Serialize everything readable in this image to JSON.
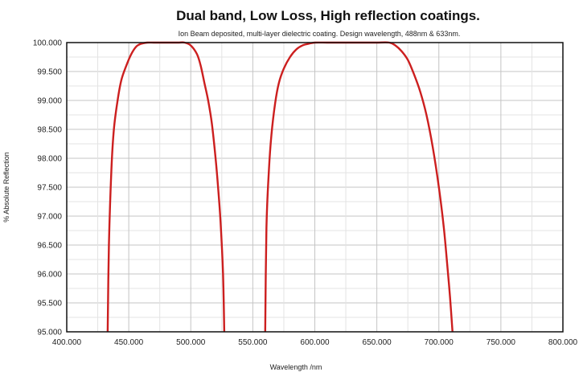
{
  "chart_data": {
    "type": "line",
    "title": "Dual band, Low Loss, High reflection coatings.",
    "subtitle": "Ion Beam deposited, multi-layer dielectric coating. Design wavelength, 488nm & 633nm.",
    "xlabel": "Wavelength /nm",
    "ylabel": "% Absolute Reflection",
    "xlim": [
      400,
      800
    ],
    "ylim": [
      95,
      100
    ],
    "x_ticks": [
      400,
      450,
      500,
      550,
      600,
      650,
      700,
      750,
      800
    ],
    "x_tick_labels": [
      "400.000",
      "450.000",
      "500.000",
      "550.000",
      "600.000",
      "650.000",
      "700.000",
      "750.000",
      "800.000"
    ],
    "y_ticks": [
      95,
      95.5,
      96,
      96.5,
      97,
      97.5,
      98,
      98.5,
      99,
      99.5,
      100
    ],
    "y_tick_labels": [
      "95.000",
      "95.500",
      "96.000",
      "96.500",
      "97.000",
      "97.500",
      "98.000",
      "98.500",
      "99.000",
      "99.500",
      "100.000"
    ],
    "grid": true,
    "line_color": "#cc1f1f",
    "series": [
      {
        "x": [
          433,
          434,
          436,
          438,
          441,
          444,
          448,
          452,
          456,
          460,
          465,
          470,
          475,
          480,
          485,
          490,
          495,
          500,
          505,
          508,
          511,
          514,
          517,
          520,
          522,
          524,
          526,
          527
        ],
        "y": [
          95.0,
          96.5,
          97.8,
          98.5,
          99.0,
          99.35,
          99.6,
          99.8,
          99.93,
          99.98,
          100.0,
          100.0,
          100.0,
          100.0,
          100.0,
          100.0,
          100.0,
          99.95,
          99.8,
          99.6,
          99.3,
          99.0,
          98.6,
          98.0,
          97.5,
          96.9,
          96.0,
          95.0
        ]
      },
      {
        "x": [
          560,
          561,
          563,
          565,
          568,
          571,
          575,
          580,
          585,
          590,
          595,
          600,
          610,
          620,
          630,
          640,
          650,
          660,
          665,
          670,
          675,
          680,
          685,
          690,
          695,
          700,
          704,
          707,
          709,
          711
        ],
        "y": [
          95.0,
          96.8,
          97.8,
          98.4,
          98.95,
          99.3,
          99.55,
          99.75,
          99.88,
          99.95,
          99.98,
          100.0,
          100.0,
          100.0,
          100.0,
          100.0,
          100.0,
          100.0,
          99.95,
          99.85,
          99.7,
          99.45,
          99.15,
          98.75,
          98.2,
          97.5,
          96.8,
          96.1,
          95.6,
          95.0
        ]
      }
    ]
  }
}
